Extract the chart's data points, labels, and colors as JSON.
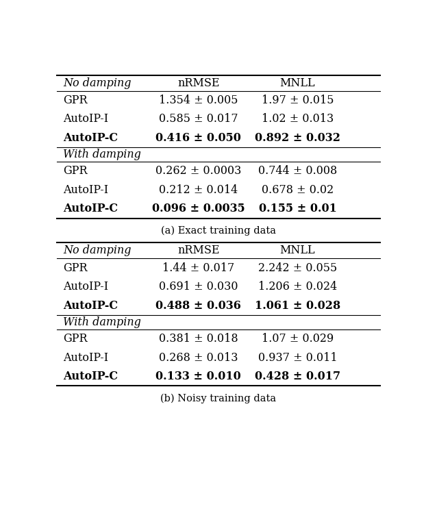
{
  "table_a_title": "(a) Exact training data",
  "table_b_title": "(b) Noisy training data",
  "col_headers": [
    "nRMSE",
    "MNLL"
  ],
  "table_a": {
    "section1_header": "No damping",
    "section1_rows": [
      {
        "method": "GPR",
        "nrmse": "1.354 ± 0.005",
        "mnll": "1.97 ± 0.015",
        "bold": false
      },
      {
        "method": "AutoIP-I",
        "nrmse": "0.585 ± 0.017",
        "mnll": "1.02 ± 0.013",
        "bold": false
      },
      {
        "method": "AutoIP-C",
        "nrmse": "0.416 ± 0.050",
        "mnll": "0.892 ± 0.032",
        "bold": true
      }
    ],
    "section2_header": "With damping",
    "section2_rows": [
      {
        "method": "GPR",
        "nrmse": "0.262 ± 0.0003",
        "mnll": "0.744 ± 0.008",
        "bold": false
      },
      {
        "method": "AutoIP-I",
        "nrmse": "0.212 ± 0.014",
        "mnll": "0.678 ± 0.02",
        "bold": false
      },
      {
        "method": "AutoIP-C",
        "nrmse": "0.096 ± 0.0035",
        "mnll": "0.155 ± 0.01",
        "bold": true
      }
    ]
  },
  "table_b": {
    "section1_header": "No damping",
    "section1_rows": [
      {
        "method": "GPR",
        "nrmse": "1.44 ± 0.017",
        "mnll": "2.242 ± 0.055",
        "bold": false
      },
      {
        "method": "AutoIP-I",
        "nrmse": "0.691 ± 0.030",
        "mnll": "1.206 ± 0.024",
        "bold": false
      },
      {
        "method": "AutoIP-C",
        "nrmse": "0.488 ± 0.036",
        "mnll": "1.061 ± 0.028",
        "bold": true
      }
    ],
    "section2_header": "With damping",
    "section2_rows": [
      {
        "method": "GPR",
        "nrmse": "0.381 ± 0.018",
        "mnll": "1.07 ± 0.029",
        "bold": false
      },
      {
        "method": "AutoIP-I",
        "nrmse": "0.268 ± 0.013",
        "mnll": "0.937 ± 0.011",
        "bold": false
      },
      {
        "method": "AutoIP-C",
        "nrmse": "0.133 ± 0.010",
        "mnll": "0.428 ± 0.017",
        "bold": true
      }
    ]
  },
  "font_size": 11.5,
  "header_font_size": 11.5,
  "caption_font_size": 10.5
}
